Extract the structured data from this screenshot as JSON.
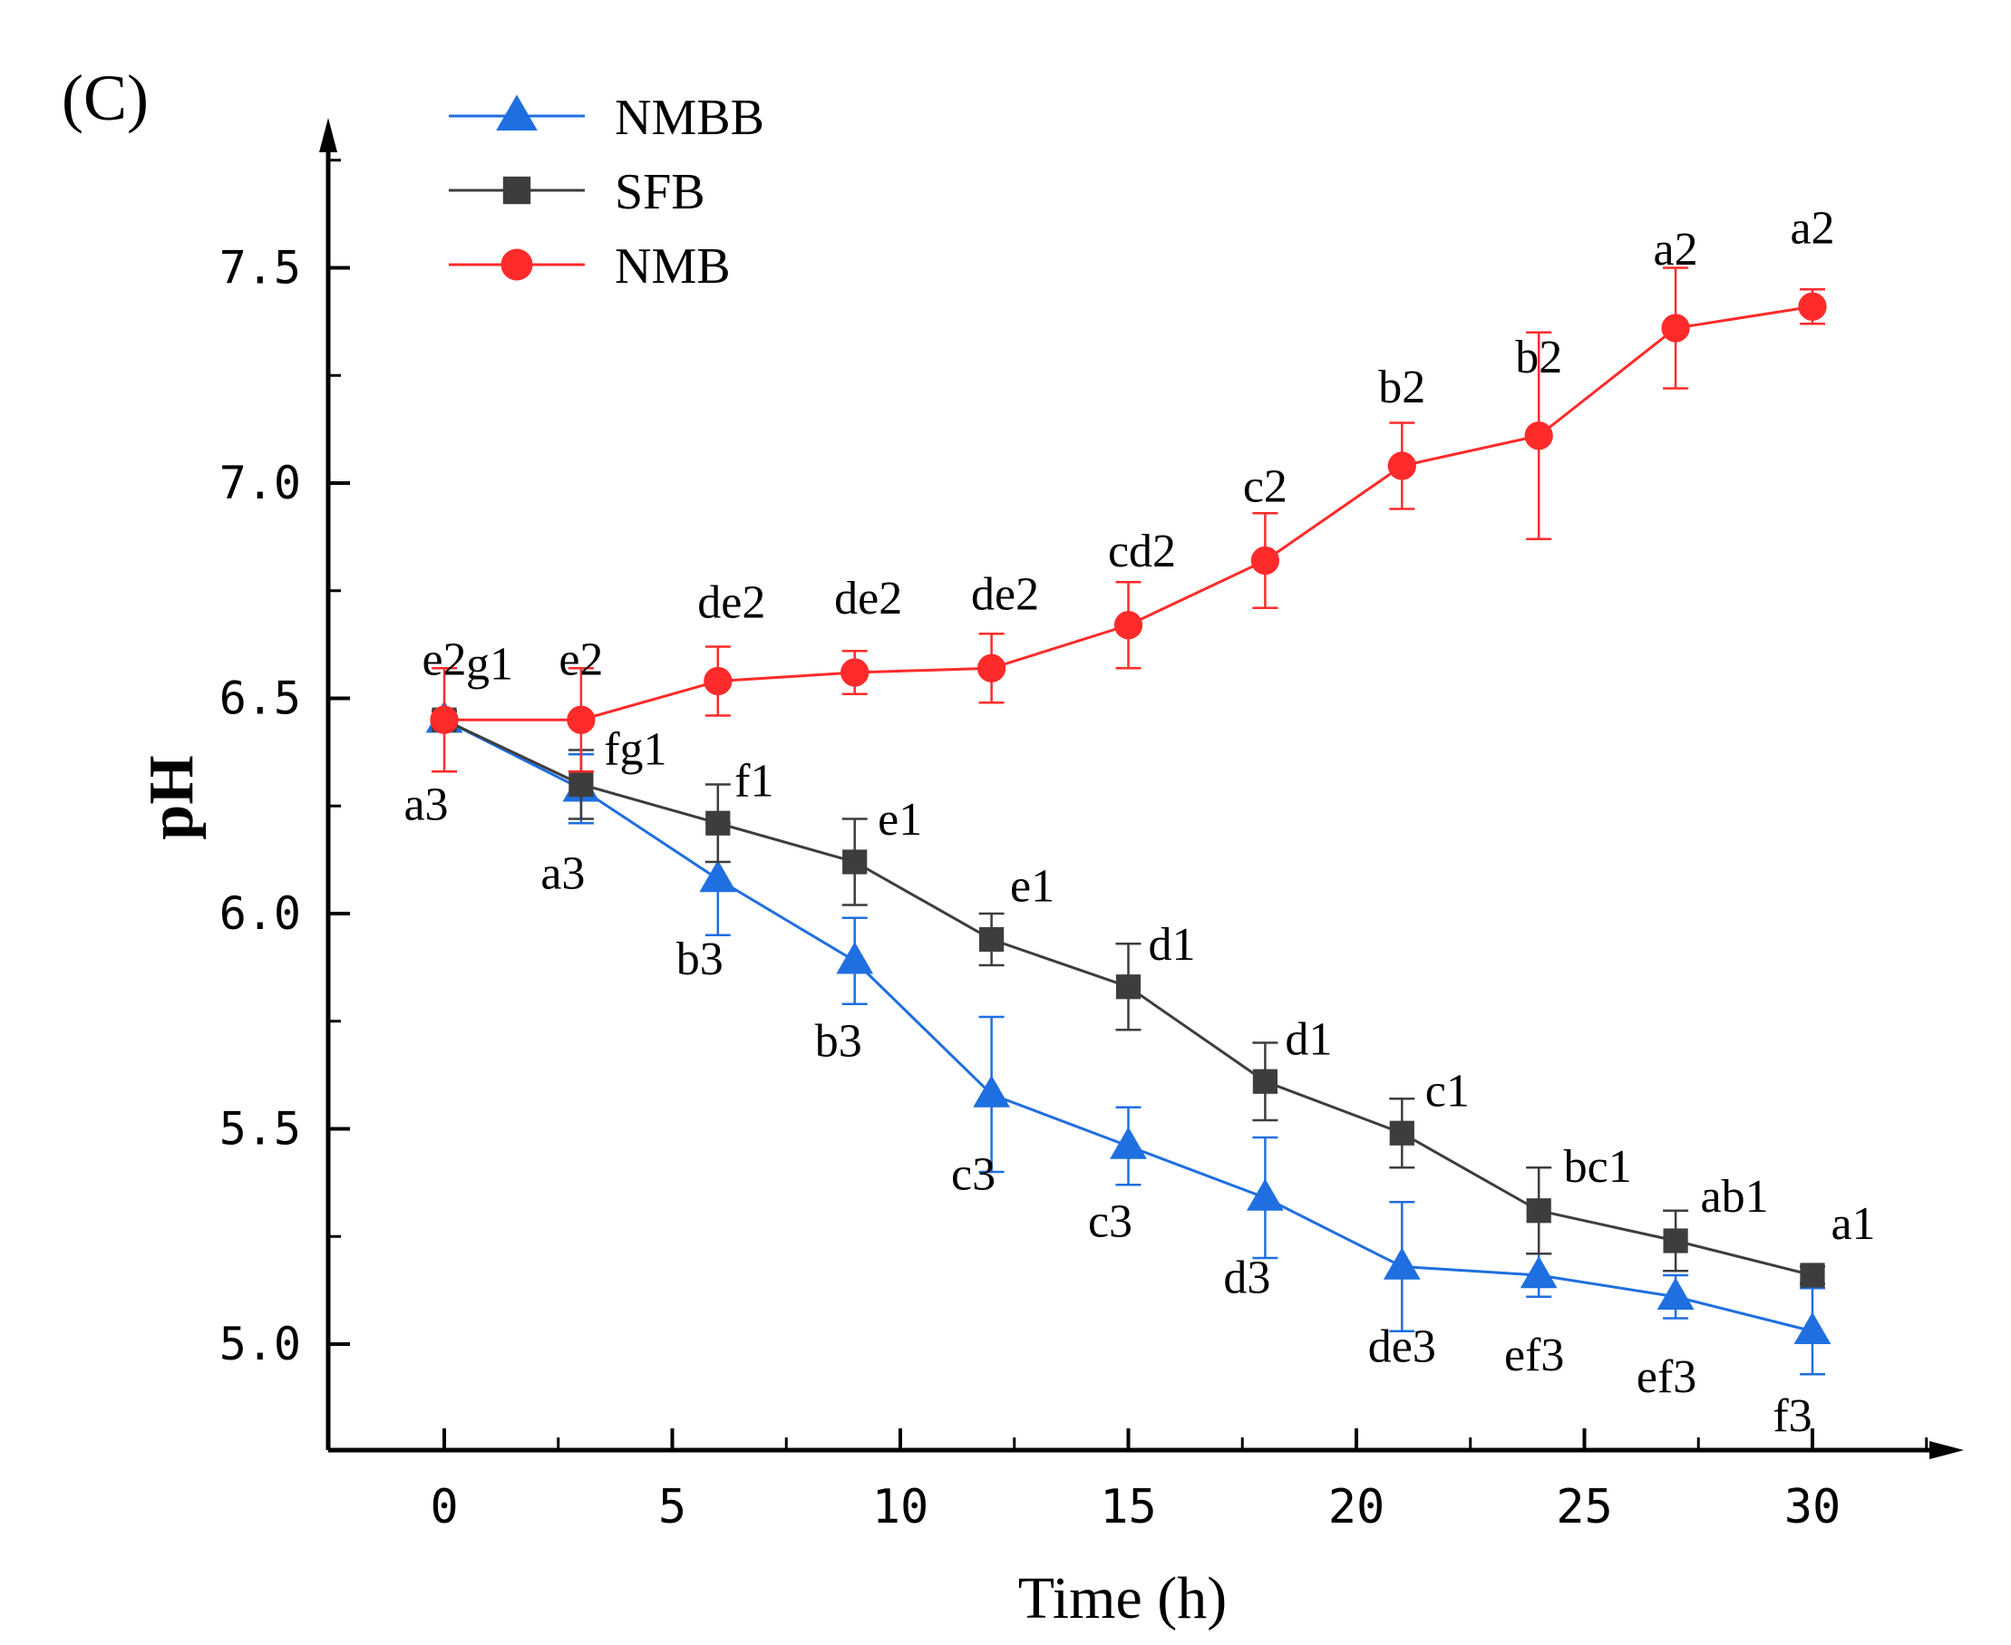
{
  "panel_label": "(C)",
  "chart_data": {
    "type": "line",
    "xlabel": "Time (h)",
    "ylabel": "pH",
    "xlim": [
      -2.5,
      33.5
    ],
    "ylim": [
      4.75,
      7.75
    ],
    "x_ticks": [
      0,
      5,
      10,
      15,
      20,
      25,
      30
    ],
    "x_tick_labels": [
      "0",
      "5",
      "10",
      "15",
      "20",
      "25",
      "30"
    ],
    "y_ticks": [
      5.0,
      5.5,
      6.0,
      6.5,
      7.0,
      7.5
    ],
    "y_tick_labels": [
      "5.0",
      "5.5",
      "6.0",
      "6.5",
      "7.0",
      "7.5"
    ],
    "x": [
      0,
      3,
      6,
      9,
      12,
      15,
      18,
      21,
      24,
      27,
      30
    ],
    "grid": false,
    "legend_position": "top-left",
    "series": [
      {
        "name": "NMBB",
        "color": "#1f6fe0",
        "marker": "triangle",
        "values": [
          6.45,
          6.29,
          6.08,
          5.89,
          5.58,
          5.46,
          5.34,
          5.18,
          5.16,
          5.11,
          5.03
        ],
        "errors": [
          0.02,
          0.08,
          0.13,
          0.1,
          0.18,
          0.09,
          0.14,
          0.15,
          0.05,
          0.05,
          0.1
        ],
        "labels": [
          "a3",
          "a3",
          "b3",
          "b3",
          "c3",
          "c3",
          "d3",
          "de3",
          "ef3",
          "ef3",
          "f3"
        ]
      },
      {
        "name": "SFB",
        "color": "#3d3d3d",
        "marker": "square",
        "values": [
          6.45,
          6.3,
          6.21,
          6.12,
          5.94,
          5.83,
          5.61,
          5.49,
          5.31,
          5.24,
          5.16
        ],
        "errors": [
          0.02,
          0.08,
          0.09,
          0.1,
          0.06,
          0.1,
          0.09,
          0.08,
          0.1,
          0.07,
          0.02
        ],
        "labels": [
          "g1",
          "fg1",
          "f1",
          "e1",
          "e1",
          "d1",
          "d1",
          "c1",
          "bc1",
          "ab1",
          "a1"
        ]
      },
      {
        "name": "NMB",
        "color": "#ff2a2a",
        "marker": "circle",
        "values": [
          6.45,
          6.45,
          6.54,
          6.56,
          6.57,
          6.67,
          6.82,
          7.04,
          7.11,
          7.36,
          7.41
        ],
        "errors": [
          0.12,
          0.12,
          0.08,
          0.05,
          0.08,
          0.1,
          0.11,
          0.1,
          0.24,
          0.14,
          0.04
        ],
        "labels": [
          "e2",
          "e2",
          "de2",
          "de2",
          "de2",
          "cd2",
          "c2",
          "b2",
          "b2",
          "a2",
          "a2"
        ]
      }
    ]
  }
}
